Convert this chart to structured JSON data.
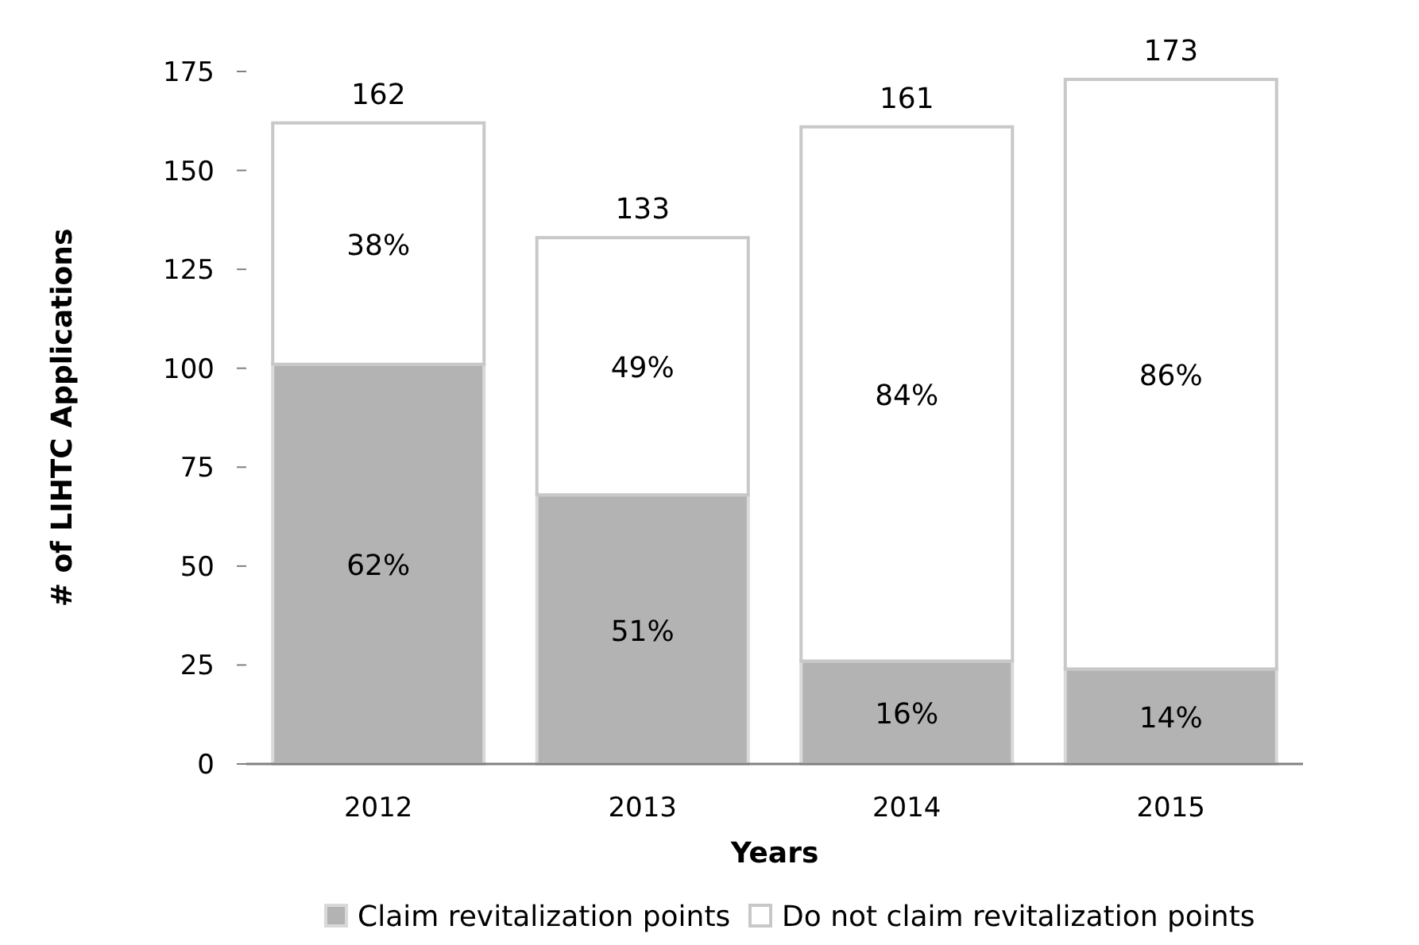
{
  "chart_data": {
    "type": "bar",
    "stacked": true,
    "xlabel": "Years",
    "ylabel": "# of LIHTC Applications",
    "categories": [
      "2012",
      "2013",
      "2014",
      "2015"
    ],
    "series": [
      {
        "name": "Claim revitalization points",
        "color": "#b3b3b3",
        "values": [
          101,
          68,
          26,
          24
        ]
      },
      {
        "name": "Do not claim revitalization points",
        "color": "#ffffff",
        "values": [
          61,
          65,
          135,
          149
        ]
      }
    ],
    "annotations": [
      "62%",
      "51%",
      "16%",
      "14%",
      "38%",
      "49%",
      "84%",
      "86%"
    ],
    "totals": [
      "162",
      "133",
      "161",
      "173"
    ],
    "ylim": [
      0,
      175
    ],
    "yticks": [
      0,
      25,
      50,
      75,
      100,
      125,
      150,
      175
    ],
    "grid": false,
    "legend": "bottom"
  }
}
